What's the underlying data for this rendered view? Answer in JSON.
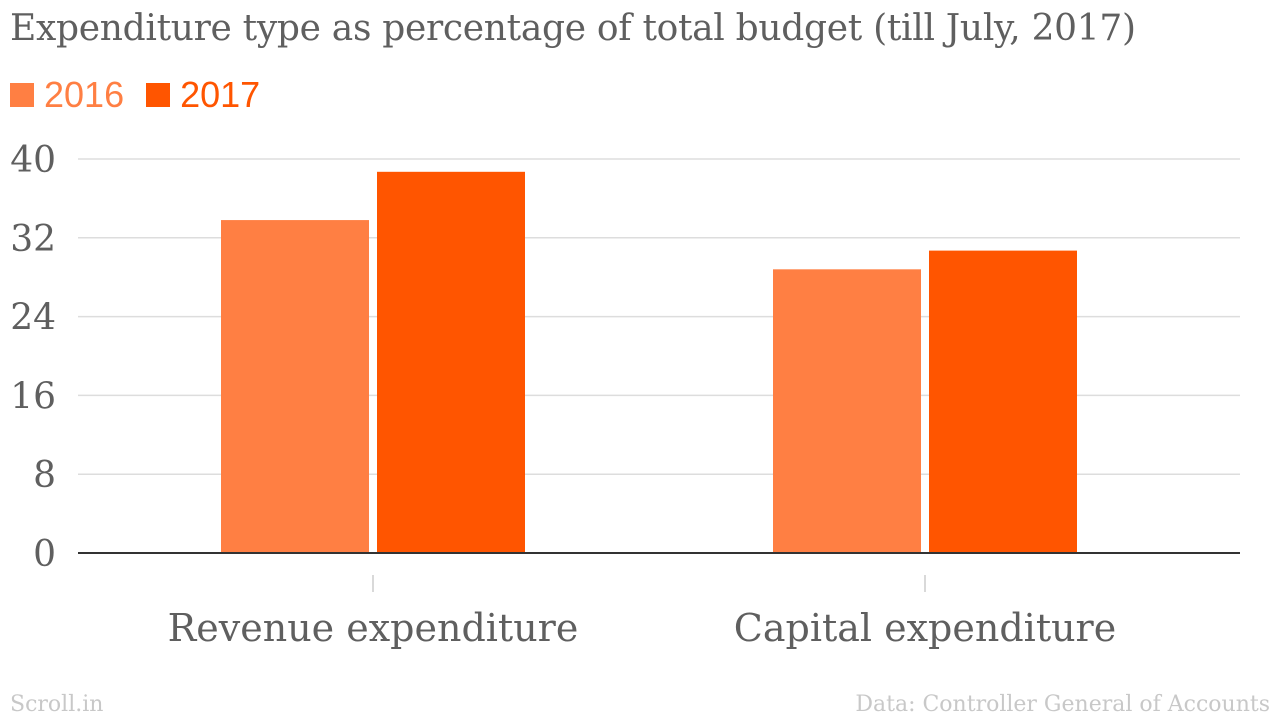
{
  "title": "Expenditure type as percentage of total budget (till July, 2017)",
  "footer": {
    "brand": "Scroll.in",
    "source": "Data: Controller General of Accounts"
  },
  "chart_data": {
    "type": "bar",
    "categories": [
      "Revenue expenditure",
      "Capital expenditure"
    ],
    "series": [
      {
        "name": "2016",
        "color": "#ff7f43",
        "values": [
          33.8,
          28.8
        ]
      },
      {
        "name": "2017",
        "color": "#ff5500",
        "values": [
          38.7,
          30.7
        ]
      }
    ],
    "ylim": [
      0,
      40
    ],
    "yticks": [
      0,
      8,
      16,
      24,
      32,
      40
    ],
    "grid": true,
    "legend": "top-left"
  }
}
